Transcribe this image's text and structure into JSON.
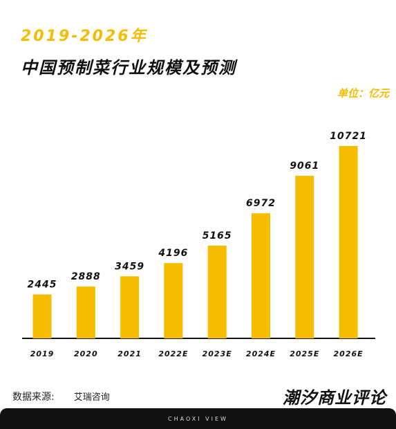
{
  "header": {
    "years": "2019-2026年",
    "title": "中国预制菜行业规模及预测",
    "unit": "单位：亿元"
  },
  "chart_data": {
    "type": "bar",
    "categories": [
      "2019",
      "2020",
      "2021",
      "2022E",
      "2023E",
      "2024E",
      "2025E",
      "2026E"
    ],
    "values": [
      2445,
      2888,
      3459,
      4196,
      5165,
      6972,
      9061,
      10721
    ],
    "title": "中国预制菜行业规模及预测",
    "ylabel": "单位：亿元",
    "ylim": [
      0,
      11000
    ],
    "grid": false,
    "bar_color": "#f6bd00",
    "axis_color": "#111111"
  },
  "footer": {
    "source_label": "数据来源:",
    "source_value": "艾瑞咨询",
    "brand": "潮汐商业评论",
    "tagline": "CHAOXI VIEW"
  },
  "colors": {
    "accent": "#f6bd00",
    "text": "#111111",
    "footer_bg": "#111111"
  }
}
